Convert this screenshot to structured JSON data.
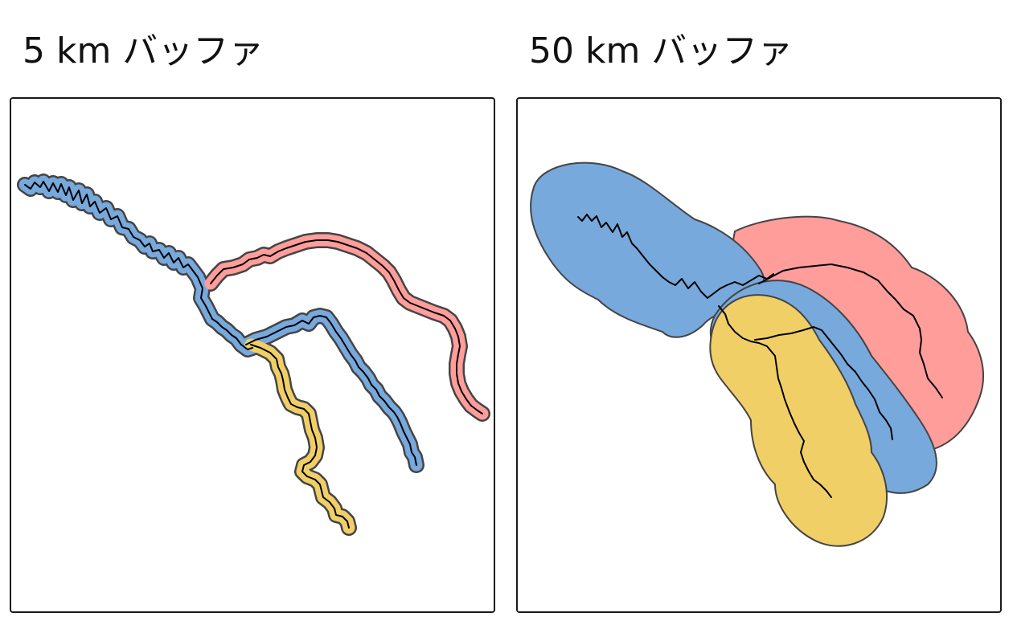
{
  "panels": [
    {
      "title": "5 km バッファ"
    },
    {
      "title": "50 km バッファ"
    }
  ],
  "colors": {
    "blue": "#77a9dc",
    "red": "#ff9d9b",
    "yellow": "#f0cf67",
    "outline": "#444444",
    "river": "#000000"
  }
}
